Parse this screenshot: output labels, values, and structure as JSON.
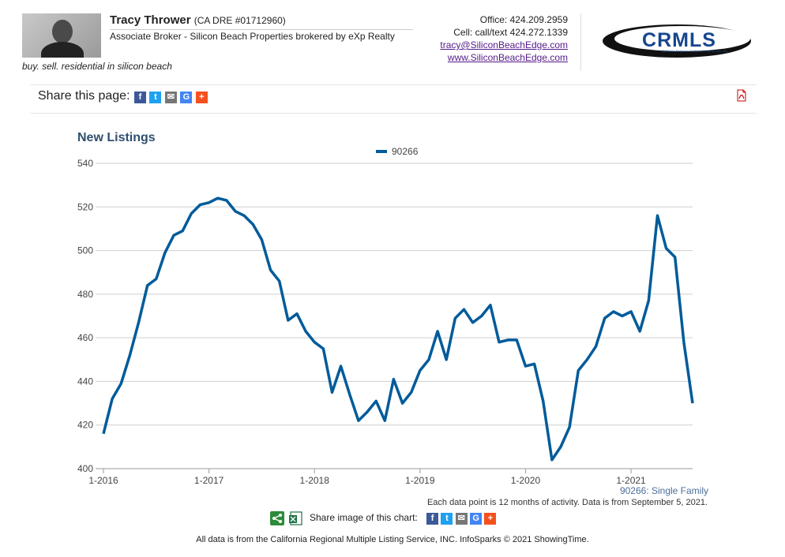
{
  "agent": {
    "name": "Tracy Thrower",
    "dre": "(CA DRE #01712960)",
    "role": "Associate Broker - Silicon Beach Properties brokered by eXp Realty",
    "tagline": "buy. sell. residential in silicon beach"
  },
  "contact": {
    "office": "Office: 424.209.2959",
    "cell": "Cell: call/text 424.272.1339",
    "email": "tracy@SiliconBeachEdge.com",
    "website": "www.SiliconBeachEdge.com"
  },
  "logo": {
    "text": "CRMLS",
    "subtext": "California Regional Multiple Listing Service, Inc."
  },
  "share": {
    "label": "Share this page:",
    "icons": [
      "facebook-icon",
      "twitter-icon",
      "email-icon",
      "google-icon",
      "plus-icon"
    ],
    "image_label": "Share image of this chart:"
  },
  "colors": {
    "line": "#005b9a",
    "facebook": "#3b5998",
    "twitter": "#1da1f2",
    "email": "#777777",
    "google": "#4285f4",
    "plus": "#f4511e",
    "title": "#2f4f6f"
  },
  "chart_data": {
    "type": "line",
    "title": "New Listings",
    "series": [
      {
        "name": "90266",
        "x": [
          "2016-01",
          "2016-02",
          "2016-03",
          "2016-04",
          "2016-05",
          "2016-06",
          "2016-07",
          "2016-08",
          "2016-09",
          "2016-10",
          "2016-11",
          "2016-12",
          "2017-01",
          "2017-02",
          "2017-03",
          "2017-04",
          "2017-05",
          "2017-06",
          "2017-07",
          "2017-08",
          "2017-09",
          "2017-10",
          "2017-11",
          "2017-12",
          "2018-01",
          "2018-02",
          "2018-03",
          "2018-04",
          "2018-05",
          "2018-06",
          "2018-07",
          "2018-08",
          "2018-09",
          "2018-10",
          "2018-11",
          "2018-12",
          "2019-01",
          "2019-02",
          "2019-03",
          "2019-04",
          "2019-05",
          "2019-06",
          "2019-07",
          "2019-08",
          "2019-09",
          "2019-10",
          "2019-11",
          "2019-12",
          "2020-01",
          "2020-02",
          "2020-03",
          "2020-04",
          "2020-05",
          "2020-06",
          "2020-07",
          "2020-08",
          "2020-09",
          "2020-10",
          "2020-11",
          "2020-12",
          "2021-01",
          "2021-02",
          "2021-03",
          "2021-04",
          "2021-05",
          "2021-06",
          "2021-07",
          "2021-08"
        ],
        "values": [
          416,
          432,
          439,
          452,
          467,
          484,
          487,
          499,
          507,
          509,
          517,
          521,
          522,
          524,
          523,
          518,
          516,
          512,
          505,
          491,
          486,
          468,
          471,
          463,
          458,
          455,
          435,
          447,
          434,
          422,
          426,
          431,
          422,
          441,
          430,
          435,
          445,
          450,
          463,
          450,
          469,
          473,
          467,
          470,
          475,
          458,
          459,
          459,
          447,
          448,
          431,
          404,
          410,
          419,
          445,
          450,
          456,
          469,
          472,
          470,
          472,
          463,
          477,
          516,
          501,
          497,
          458,
          430
        ]
      }
    ],
    "x_ticks": [
      "1-2016",
      "1-2017",
      "1-2018",
      "1-2019",
      "1-2020",
      "1-2021"
    ],
    "ylim": [
      400,
      540
    ],
    "y_ticks": [
      400,
      420,
      440,
      460,
      480,
      500,
      520,
      540
    ],
    "grid": true,
    "legend": "top-center",
    "annotation": "90266: Single Family",
    "footnote": "Each data point is 12 months of activity. Data is from September 5, 2021."
  },
  "footer": "All data is from the California Regional Multiple Listing Service, INC. InfoSparks © 2021 ShowingTime."
}
